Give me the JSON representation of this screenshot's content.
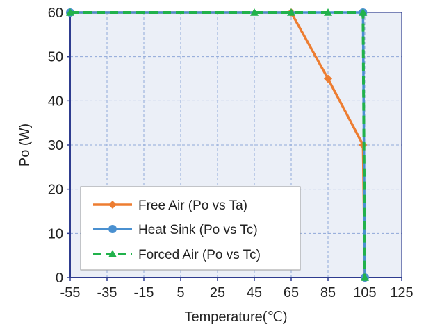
{
  "chart_data": {
    "type": "line",
    "title": "",
    "xlabel": "Temperature(℃)",
    "ylabel": "Po (W)",
    "xlim": [
      -55,
      125
    ],
    "ylim": [
      0,
      60
    ],
    "x_ticks": [
      -55,
      -35,
      -15,
      5,
      25,
      45,
      65,
      85,
      105,
      125
    ],
    "y_ticks": [
      0,
      10,
      20,
      30,
      40,
      50,
      60
    ],
    "x_tick_labels": [
      "-55",
      "-35",
      "-15",
      "5",
      "25",
      "45",
      "65",
      "85",
      "105",
      "125"
    ],
    "y_tick_labels": [
      "0",
      "10",
      "20",
      "30",
      "40",
      "50",
      "60"
    ],
    "grid": true,
    "legend_position": "bottom-left",
    "series": [
      {
        "name": "Free Air (Po vs Ta)",
        "color": "#ED7D31",
        "marker": "diamond",
        "line_style": "solid",
        "points": [
          {
            "x": -55,
            "y": 60
          },
          {
            "x": 65,
            "y": 60
          },
          {
            "x": 85,
            "y": 45
          },
          {
            "x": 104,
            "y": 30
          },
          {
            "x": 105,
            "y": 0
          }
        ]
      },
      {
        "name": "Heat Sink  (Po vs Tc)",
        "color": "#4A90D0",
        "marker": "circle",
        "line_style": "solid",
        "points": [
          {
            "x": -55,
            "y": 60
          },
          {
            "x": 104,
            "y": 60
          },
          {
            "x": 105,
            "y": 0
          }
        ]
      },
      {
        "name": "Forced Air (Po vs Tc)",
        "color": "#21B24B",
        "marker": "triangle",
        "line_style": "dashed",
        "points": [
          {
            "x": -55,
            "y": 60
          },
          {
            "x": 45,
            "y": 60
          },
          {
            "x": 65,
            "y": 60
          },
          {
            "x": 85,
            "y": 60
          },
          {
            "x": 104,
            "y": 60
          },
          {
            "x": 105,
            "y": 0
          }
        ]
      }
    ]
  },
  "colors": {
    "plot_background": "#EBEFF7",
    "grid": "#8FA8D8",
    "axis": "#2E3C8F"
  }
}
